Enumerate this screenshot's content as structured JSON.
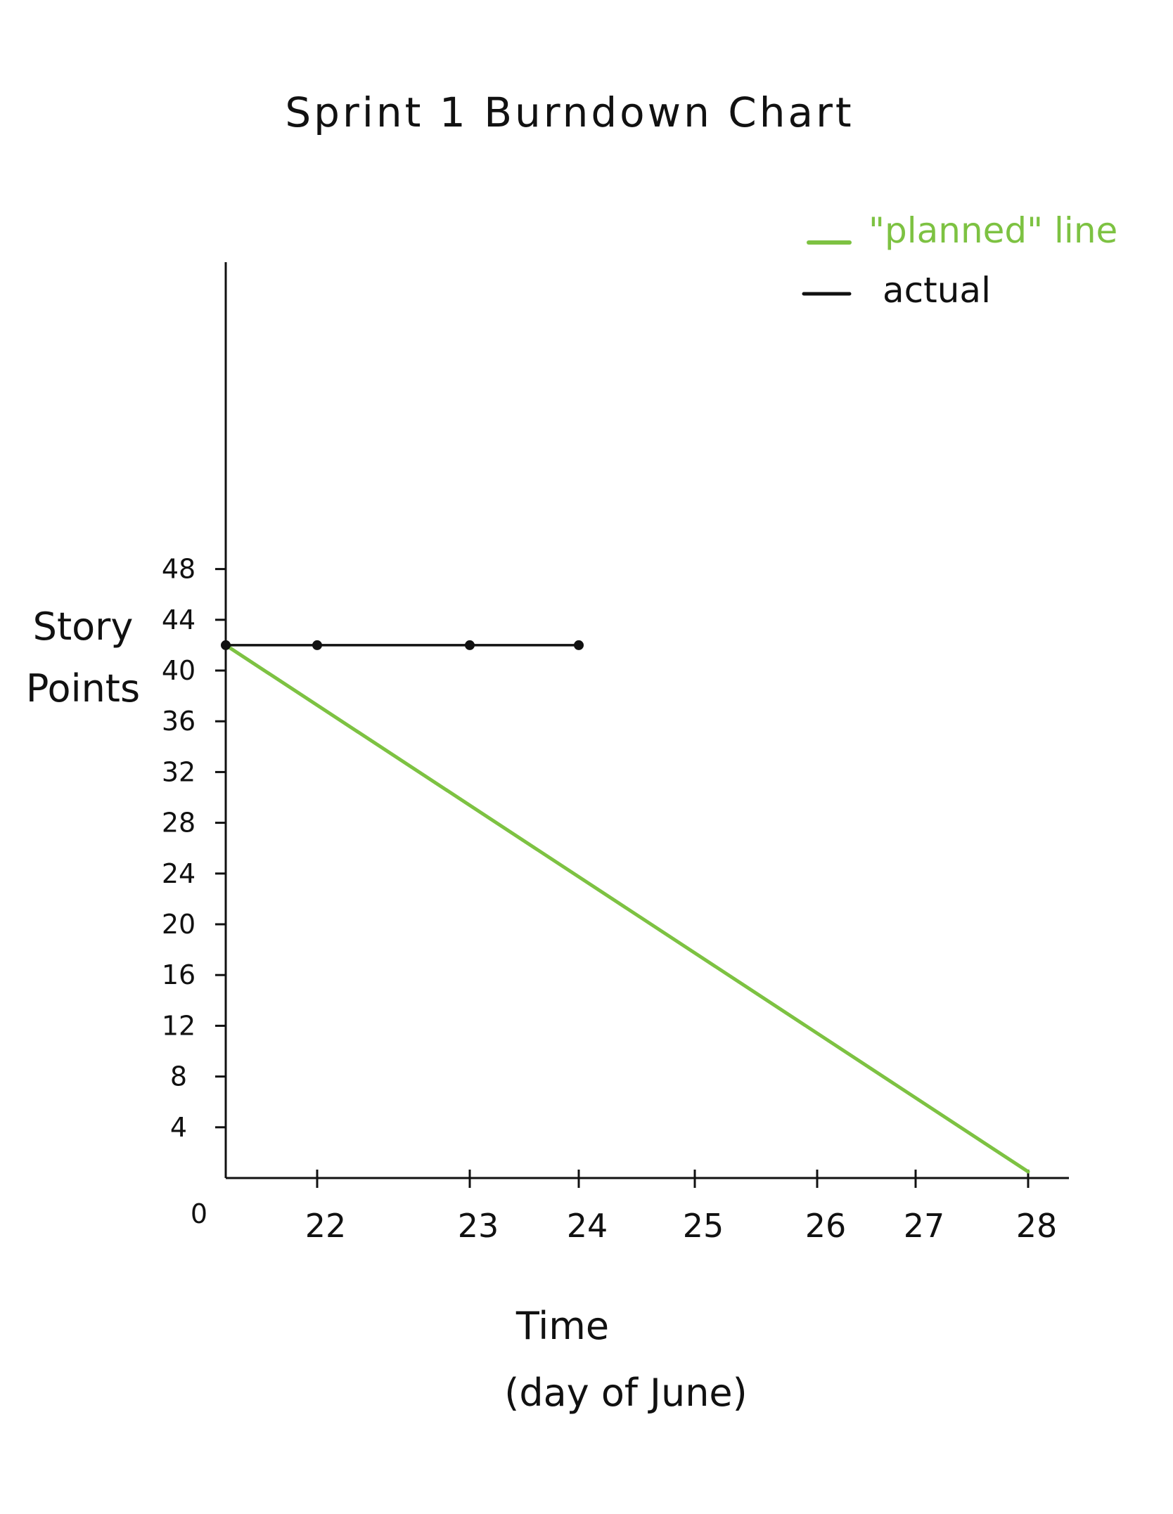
{
  "chart_data": {
    "type": "line",
    "title": "Sprint 1 Burndown Chart",
    "ylabel_lines": [
      "Story",
      "Points"
    ],
    "xlabel_lines": [
      "Time",
      "(day of June)"
    ],
    "origin_label": "0",
    "y_ticks": [
      4,
      8,
      12,
      16,
      20,
      24,
      28,
      32,
      36,
      40,
      44,
      48
    ],
    "x_ticks": [
      22,
      23,
      24,
      25,
      26,
      27,
      28
    ],
    "series": [
      {
        "name": "\"planned\" line",
        "color": "#7dc242",
        "points": [
          [
            21.3,
            42
          ],
          [
            28,
            0.5
          ]
        ]
      },
      {
        "name": "actual",
        "color": "#111111",
        "points": [
          [
            21.3,
            42
          ],
          [
            22,
            42
          ],
          [
            23,
            42
          ],
          [
            24,
            42
          ]
        ],
        "markers": true
      }
    ],
    "legend_position": "top-right",
    "grid": false
  }
}
